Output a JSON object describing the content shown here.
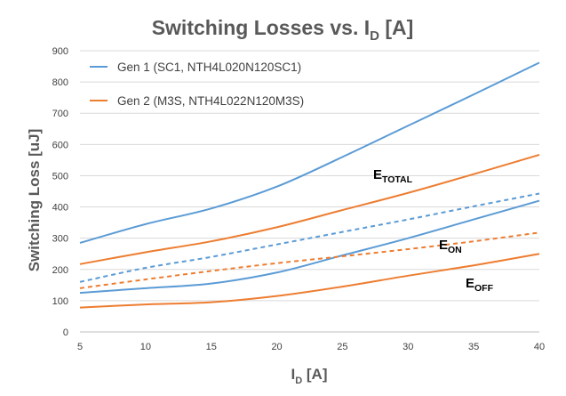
{
  "chart_data": {
    "type": "line",
    "title": {
      "main": "Switching Losses vs. I",
      "sub": "D",
      "suffix": " [A]"
    },
    "xlabel": {
      "main": "I",
      "sub": "D",
      "suffix": " [A]"
    },
    "ylabel": "Switching Loss [uJ]",
    "xlim": [
      5,
      40
    ],
    "ylim": [
      0,
      900
    ],
    "xticks": [
      5,
      10,
      15,
      20,
      25,
      30,
      35,
      40
    ],
    "yticks": [
      0,
      100,
      200,
      300,
      400,
      500,
      600,
      700,
      800,
      900
    ],
    "grid": "horizontal",
    "legend_position": "top-left",
    "colors": {
      "gen1": "#5b9bd5",
      "gen2": "#ed7d31"
    },
    "legend": [
      {
        "label": "Gen 1 (SC1, NTH4L020N120SC1)",
        "color": "#5b9bd5"
      },
      {
        "label": "Gen 2 (M3S, NTH4L022N120M3S)",
        "color": "#ed7d31"
      }
    ],
    "x": [
      5,
      10,
      15,
      20,
      25,
      30,
      35,
      40
    ],
    "series": [
      {
        "name": "Gen 1 E_TOTAL",
        "generation": "Gen 1",
        "metric": "E_TOTAL",
        "color": "#5b9bd5",
        "dashed": false,
        "values": [
          285,
          345,
          395,
          465,
          560,
          660,
          760,
          862
        ]
      },
      {
        "name": "Gen 1 E_ON",
        "generation": "Gen 1",
        "metric": "E_ON",
        "color": "#5b9bd5",
        "dashed": true,
        "values": [
          160,
          205,
          240,
          280,
          320,
          360,
          402,
          443
        ]
      },
      {
        "name": "Gen 1 E_OFF",
        "generation": "Gen 1",
        "metric": "E_OFF",
        "color": "#5b9bd5",
        "dashed": false,
        "values": [
          125,
          140,
          155,
          190,
          245,
          300,
          360,
          420
        ]
      },
      {
        "name": "Gen 2 E_TOTAL",
        "generation": "Gen 2",
        "metric": "E_TOTAL",
        "color": "#ed7d31",
        "dashed": false,
        "values": [
          217,
          255,
          290,
          335,
          390,
          445,
          505,
          567
        ]
      },
      {
        "name": "Gen 2 E_ON",
        "generation": "Gen 2",
        "metric": "E_ON",
        "color": "#ed7d31",
        "dashed": true,
        "values": [
          140,
          168,
          195,
          220,
          242,
          265,
          290,
          318
        ]
      },
      {
        "name": "Gen 2 E_OFF",
        "generation": "Gen 2",
        "metric": "E_OFF",
        "color": "#ed7d31",
        "dashed": false,
        "values": [
          78,
          88,
          95,
          115,
          145,
          180,
          213,
          250
        ]
      }
    ],
    "annotations": [
      {
        "main": "E",
        "sub": "TOTAL"
      },
      {
        "main": "E",
        "sub": "ON"
      },
      {
        "main": "E",
        "sub": "OFF"
      }
    ]
  }
}
